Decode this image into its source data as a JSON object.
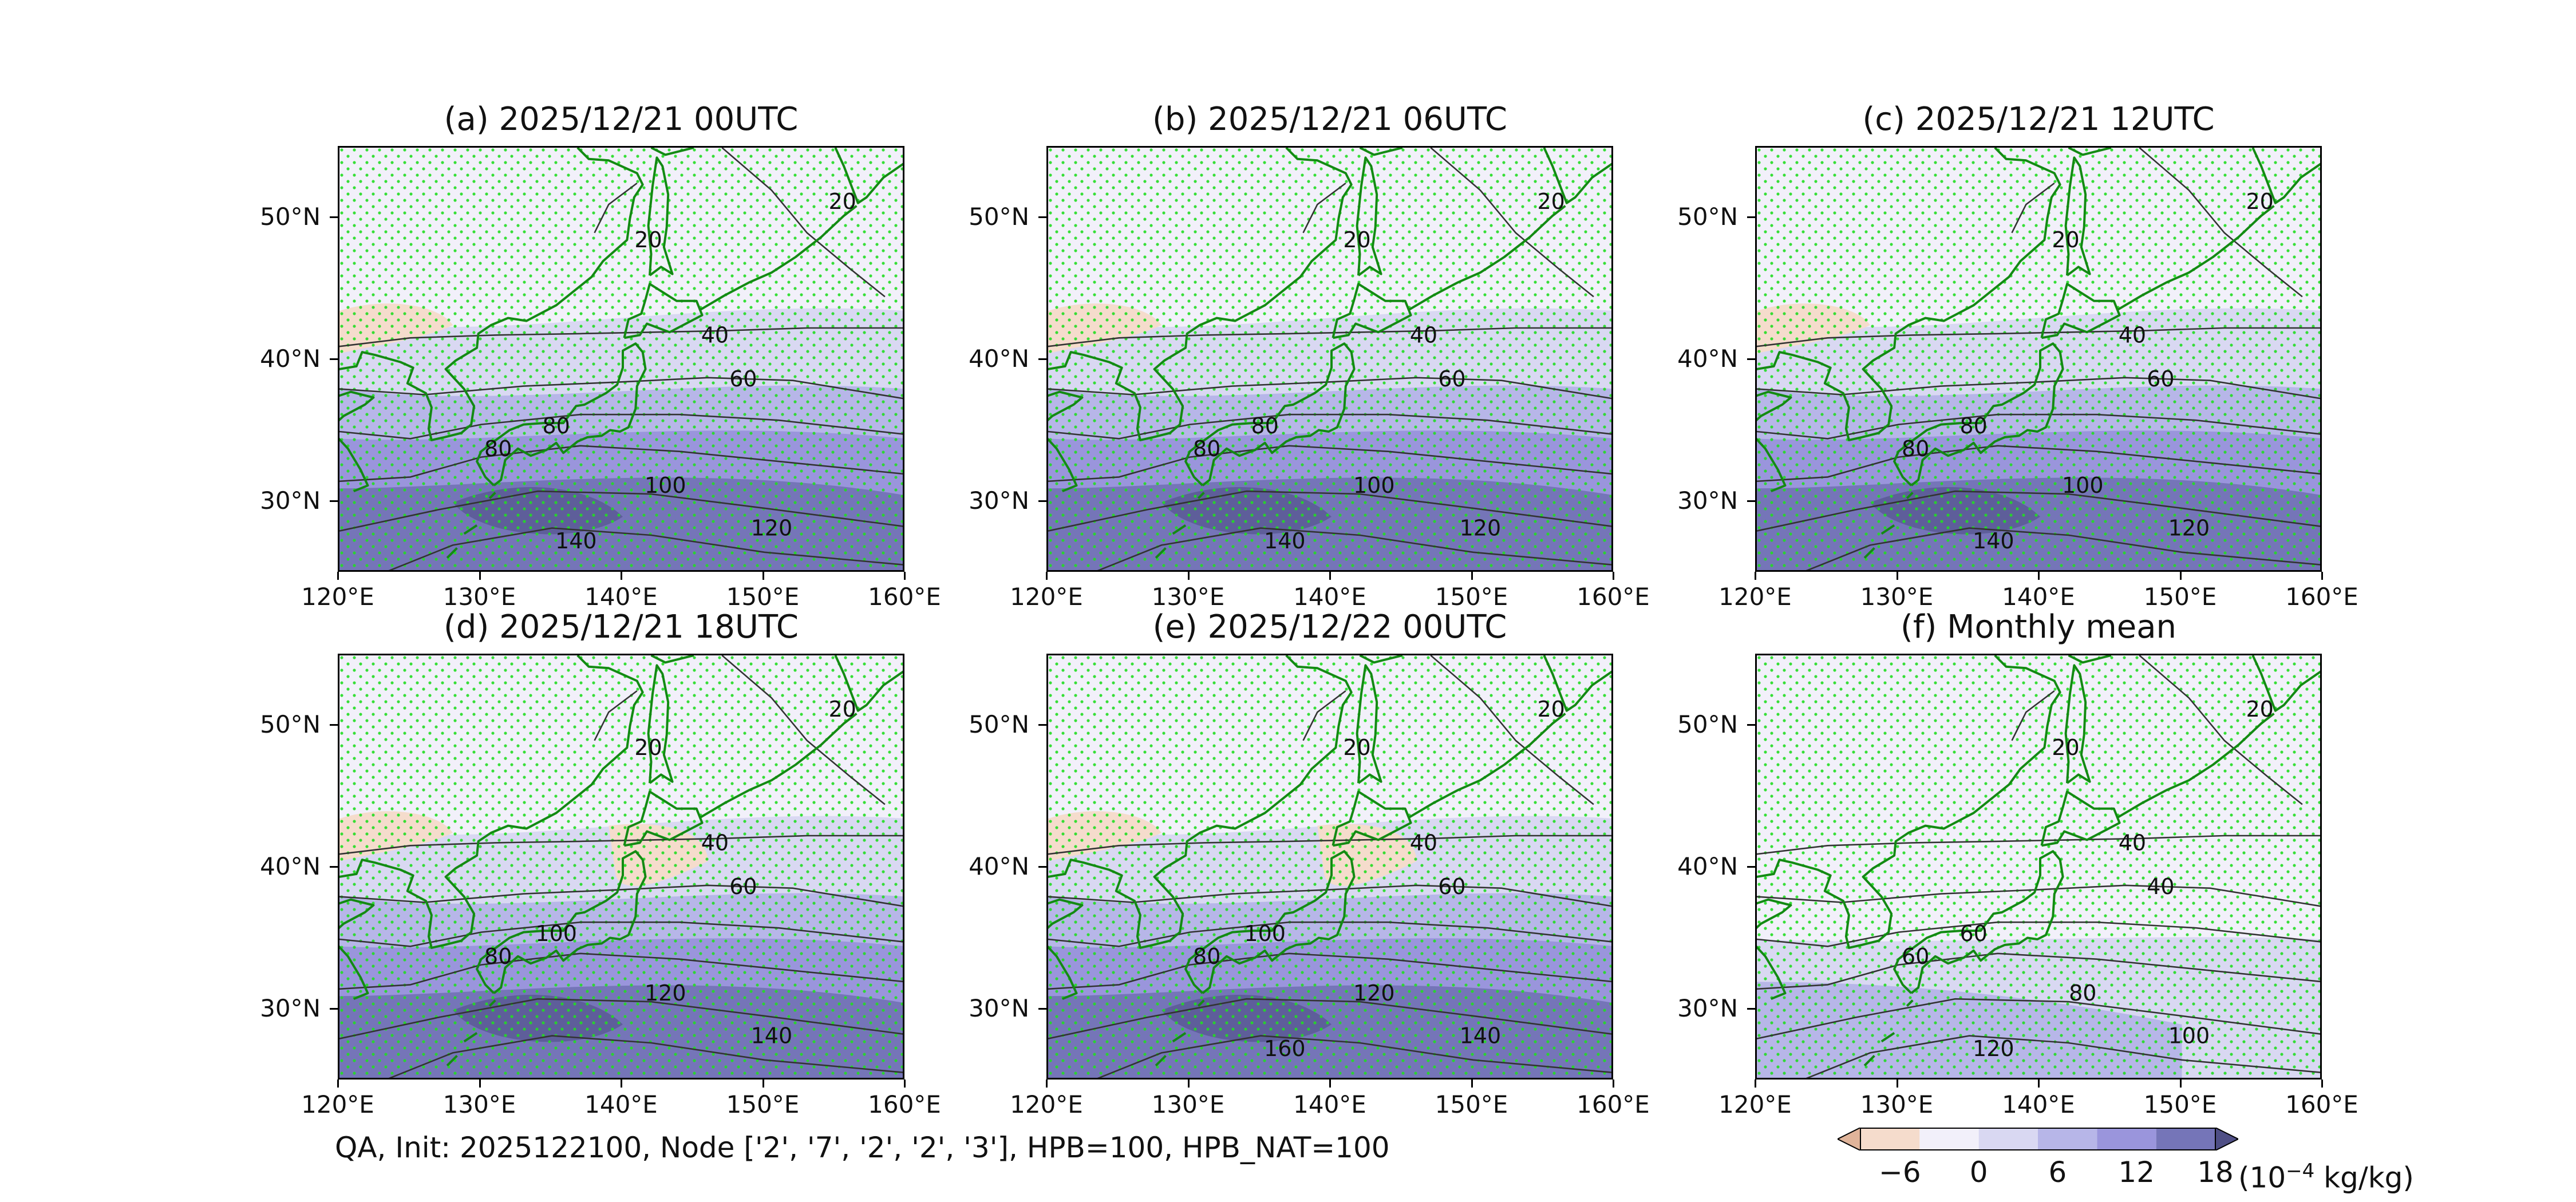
{
  "panels": [
    {
      "title": "(a) 2025/12/21 00UTC",
      "contours": [
        "20",
        "20",
        "40",
        "60",
        "80",
        "80",
        "100",
        "120",
        "140"
      ]
    },
    {
      "title": "(b) 2025/12/21 06UTC",
      "contours": [
        "20",
        "20",
        "40",
        "60",
        "80",
        "80",
        "100",
        "120",
        "140"
      ]
    },
    {
      "title": "(c) 2025/12/21 12UTC",
      "contours": [
        "20",
        "20",
        "40",
        "60",
        "80",
        "80",
        "100",
        "120",
        "140"
      ]
    },
    {
      "title": "(d) 2025/12/21 18UTC",
      "contours": [
        "20",
        "20",
        "40",
        "60",
        "80",
        "100",
        "120",
        "140"
      ]
    },
    {
      "title": "(e) 2025/12/22 00UTC",
      "contours": [
        "20",
        "20",
        "40",
        "60",
        "80",
        "100",
        "120",
        "140",
        "160"
      ]
    },
    {
      "title": "(f) Monthly mean",
      "contours": [
        "20",
        "20",
        "40",
        "40",
        "60",
        "60",
        "80",
        "100",
        "120"
      ]
    }
  ],
  "axes": {
    "y_ticks": [
      "50°N",
      "40°N",
      "30°N"
    ],
    "x_ticks": [
      "120°E",
      "130°E",
      "140°E",
      "150°E",
      "160°E"
    ]
  },
  "footer_note": "QA, Init: 2025122100, Node ['2', '7', '2', '2', '3'], HPB=100, HPB_NAT=100",
  "colorbar": {
    "ticks": [
      "−6",
      "0",
      "6",
      "12",
      "18"
    ],
    "unit_prefix": "(10",
    "unit_exponent": "−4",
    "unit_suffix": " kg/kg)",
    "colors": [
      "#e0b49a",
      "#f5dccc",
      "#f2f0fa",
      "#d9d8f2",
      "#b7b6e8",
      "#9a95dc",
      "#7575b8",
      "#4f4f86"
    ]
  },
  "style": {
    "coastline_color": "#138a13",
    "stipple_color": "#22dd22",
    "contour_color": "#333333"
  }
}
